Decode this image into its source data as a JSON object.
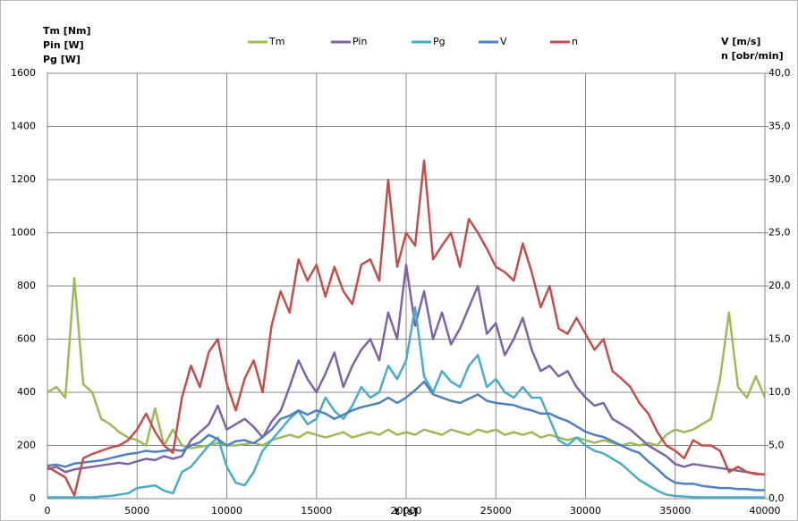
{
  "chart_data": {
    "type": "line",
    "y_label": [
      "Tm [Nm]",
      "Pin [W]",
      "Pg [W]"
    ],
    "y2_label": [
      "V [m/s]",
      "n [obr/min]"
    ],
    "x_label": "t [s]",
    "x": [
      0,
      500,
      1000,
      1500,
      2000,
      2500,
      3000,
      3500,
      4000,
      4500,
      5000,
      5500,
      6000,
      6500,
      7000,
      7500,
      8000,
      8500,
      9000,
      9500,
      10000,
      10500,
      11000,
      11500,
      12000,
      12500,
      13000,
      13500,
      14000,
      14500,
      15000,
      15500,
      16000,
      16500,
      17000,
      17500,
      18000,
      18500,
      19000,
      19500,
      20000,
      20500,
      21000,
      21500,
      22000,
      22500,
      23000,
      23500,
      24000,
      24500,
      25000,
      25500,
      26000,
      26500,
      27000,
      27500,
      28000,
      28500,
      29000,
      29500,
      30000,
      30500,
      31000,
      31500,
      32000,
      32500,
      33000,
      33500,
      34000,
      34500,
      35000,
      35500,
      36000,
      36500,
      37000,
      37500,
      38000,
      38500,
      39000,
      39500,
      40000
    ],
    "series": [
      {
        "name": "Tm",
        "color": "#9bbb59",
        "values": [
          400,
          420,
          380,
          830,
          430,
          400,
          300,
          280,
          250,
          230,
          220,
          200,
          340,
          200,
          260,
          200,
          190,
          195,
          200,
          210,
          200,
          200,
          205,
          210,
          200,
          220,
          230,
          240,
          230,
          250,
          240,
          230,
          240,
          250,
          230,
          240,
          250,
          240,
          260,
          240,
          250,
          240,
          260,
          250,
          240,
          260,
          250,
          240,
          260,
          250,
          260,
          240,
          250,
          240,
          250,
          230,
          240,
          230,
          220,
          230,
          220,
          210,
          220,
          210,
          200,
          210,
          200,
          210,
          200,
          240,
          260,
          250,
          260,
          280,
          300,
          450,
          700,
          420,
          380,
          460,
          380
        ]
      },
      {
        "name": "Pin",
        "color": "#8064a2",
        "values": [
          110,
          120,
          100,
          110,
          115,
          120,
          125,
          130,
          135,
          130,
          140,
          150,
          145,
          160,
          150,
          160,
          220,
          250,
          280,
          350,
          260,
          280,
          300,
          270,
          230,
          290,
          330,
          420,
          520,
          450,
          400,
          470,
          550,
          420,
          500,
          560,
          600,
          520,
          700,
          600,
          880,
          650,
          780,
          600,
          700,
          580,
          640,
          720,
          800,
          620,
          660,
          540,
          600,
          680,
          560,
          480,
          500,
          460,
          480,
          420,
          380,
          350,
          360,
          300,
          280,
          260,
          230,
          200,
          180,
          160,
          130,
          120,
          130,
          125,
          120,
          115,
          110,
          105,
          100,
          95,
          90
        ]
      },
      {
        "name": "Pg",
        "color": "#4bacc6",
        "values": [
          5,
          5,
          5,
          5,
          5,
          5,
          8,
          10,
          15,
          20,
          40,
          45,
          50,
          30,
          20,
          100,
          120,
          160,
          200,
          230,
          120,
          60,
          50,
          100,
          180,
          220,
          260,
          300,
          330,
          280,
          300,
          380,
          330,
          300,
          350,
          420,
          380,
          400,
          500,
          450,
          520,
          720,
          460,
          400,
          480,
          440,
          420,
          500,
          540,
          420,
          450,
          400,
          380,
          420,
          380,
          380,
          300,
          220,
          200,
          230,
          200,
          180,
          170,
          150,
          130,
          100,
          70,
          50,
          30,
          15,
          10,
          8,
          6,
          5,
          5,
          5,
          5,
          5,
          5,
          5,
          5
        ]
      },
      {
        "name": "V",
        "color": "#4f81bd",
        "axis": "y2",
        "values": [
          3.1,
          3.2,
          3.0,
          3.3,
          3.4,
          3.5,
          3.6,
          3.8,
          4.0,
          4.2,
          4.3,
          4.5,
          4.4,
          4.5,
          4.6,
          4.5,
          5.0,
          5.3,
          6.0,
          5.6,
          5.0,
          5.4,
          5.5,
          5.2,
          5.8,
          6.5,
          7.5,
          7.8,
          8.3,
          7.9,
          8.3,
          8.0,
          7.5,
          7.9,
          8.3,
          8.6,
          8.8,
          9.0,
          9.5,
          9.0,
          9.5,
          10.2,
          11.0,
          9.8,
          9.5,
          9.2,
          9.0,
          9.4,
          9.8,
          9.2,
          9.0,
          8.9,
          8.8,
          8.5,
          8.3,
          8.0,
          8.0,
          7.6,
          7.3,
          6.8,
          6.3,
          6.0,
          5.8,
          5.4,
          5.0,
          4.6,
          4.3,
          3.5,
          2.8,
          2.0,
          1.5,
          1.4,
          1.4,
          1.2,
          1.1,
          1.0,
          1.0,
          0.9,
          0.9,
          0.8,
          0.8
        ]
      },
      {
        "name": "n",
        "color": "#c0504d",
        "axis": "y2",
        "values": [
          3.0,
          2.5,
          2.0,
          0.3,
          3.8,
          4.2,
          4.5,
          4.8,
          5.0,
          5.5,
          6.5,
          8.0,
          6.3,
          5.0,
          4.3,
          9.5,
          12.5,
          10.5,
          13.8,
          15.0,
          10.8,
          8.3,
          11.3,
          13.0,
          10.0,
          16.3,
          19.5,
          17.5,
          22.5,
          20.5,
          22.0,
          19.0,
          21.8,
          19.5,
          18.3,
          22.0,
          22.5,
          20.5,
          30.0,
          21.8,
          25.0,
          23.8,
          31.8,
          22.5,
          23.8,
          25.0,
          21.8,
          26.3,
          25.0,
          23.5,
          21.8,
          21.3,
          20.5,
          24.0,
          21.3,
          18.0,
          20.0,
          16.0,
          15.5,
          17.0,
          15.5,
          14.0,
          15.0,
          12.0,
          11.3,
          10.5,
          9.0,
          8.0,
          6.3,
          5.0,
          4.5,
          3.8,
          5.5,
          5.0,
          5.0,
          4.5,
          2.5,
          3.0,
          2.5,
          2.3,
          2.3
        ]
      }
    ],
    "xlim": [
      0,
      40000
    ],
    "xticks": [
      0,
      5000,
      10000,
      15000,
      20000,
      25000,
      30000,
      35000,
      40000
    ],
    "ylim": [
      0,
      1600
    ],
    "yticks": [
      0,
      200,
      400,
      600,
      800,
      1000,
      1200,
      1400,
      1600
    ],
    "y2lim": [
      0,
      40
    ],
    "y2ticks": [
      {
        "value": 0,
        "label": "0,0"
      },
      {
        "value": 5,
        "label": "5,0"
      },
      {
        "value": 10,
        "label": "10,0"
      },
      {
        "value": 15,
        "label": "15,0"
      },
      {
        "value": 20,
        "label": "20,0"
      },
      {
        "value": 25,
        "label": "25,0"
      },
      {
        "value": 30,
        "label": "30,0"
      },
      {
        "value": 35,
        "label": "35,0"
      },
      {
        "value": 40,
        "label": "40,0"
      }
    ],
    "grid": true
  }
}
